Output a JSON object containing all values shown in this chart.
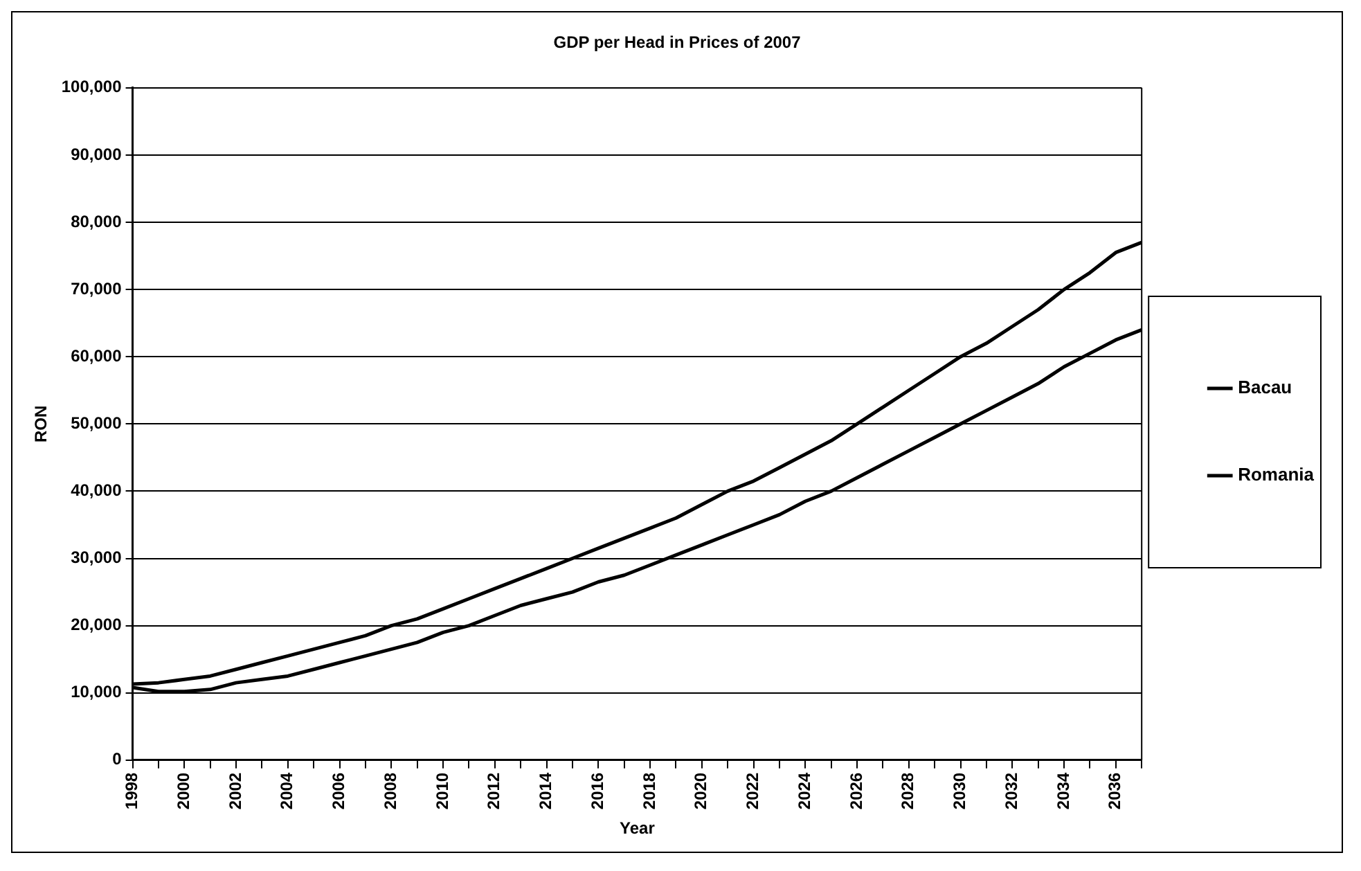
{
  "chart_data": {
    "type": "line",
    "title": "GDP per Head in Prices of 2007",
    "xlabel": "Year",
    "ylabel": "RON",
    "categories": [
      "1998",
      null,
      "2000",
      null,
      "2002",
      null,
      "2004",
      null,
      "2006",
      null,
      "2008",
      null,
      "2010",
      null,
      "2012",
      null,
      "2014",
      null,
      "2016",
      null,
      "2018",
      null,
      "2020",
      null,
      "2022",
      null,
      "2024",
      null,
      "2026",
      null,
      "2028",
      null,
      "2030",
      null,
      "2032",
      null,
      "2034",
      null,
      "2036",
      null
    ],
    "series": [
      {
        "name": "Bacau",
        "color": "#000000",
        "values": [
          10800,
          10200,
          10200,
          10500,
          11500,
          12000,
          12500,
          13500,
          14500,
          15500,
          16500,
          17500,
          19000,
          20000,
          21500,
          23000,
          24000,
          25000,
          26500,
          27500,
          29000,
          30500,
          32000,
          33500,
          35000,
          36500,
          38500,
          40000,
          42000,
          44000,
          46000,
          48000,
          50000,
          52000,
          54000,
          56000,
          58500,
          60500,
          62500,
          64000
        ]
      },
      {
        "name": "Romania",
        "color": "#000000",
        "values": [
          11300,
          11500,
          12000,
          12500,
          13500,
          14500,
          15500,
          16500,
          17500,
          18500,
          20000,
          21000,
          22500,
          24000,
          25500,
          27000,
          28500,
          30000,
          31500,
          33000,
          34500,
          36000,
          38000,
          40000,
          41500,
          43500,
          45500,
          47500,
          50000,
          52500,
          55000,
          57500,
          60000,
          62000,
          64500,
          67000,
          70000,
          72500,
          75500,
          77000
        ]
      }
    ],
    "ylim": [
      0,
      100000
    ],
    "yticks": [
      0,
      {
        "value": 10000,
        "label": "10,000"
      },
      {
        "value": 20000,
        "label": "20,000"
      },
      {
        "value": 30000,
        "label": "30,000"
      },
      {
        "value": 40000,
        "label": "40,000"
      },
      {
        "value": 50000,
        "label": "50,000"
      },
      {
        "value": 60000,
        "label": "60,000"
      },
      {
        "value": 70000,
        "label": "70,000"
      },
      {
        "value": 80000,
        "label": "80,000"
      },
      {
        "value": 90000,
        "label": "90,000"
      },
      {
        "value": 100000,
        "label": "100,000"
      }
    ],
    "grid": "y",
    "legend": "right",
    "marker": "none",
    "line_style": "solid"
  }
}
